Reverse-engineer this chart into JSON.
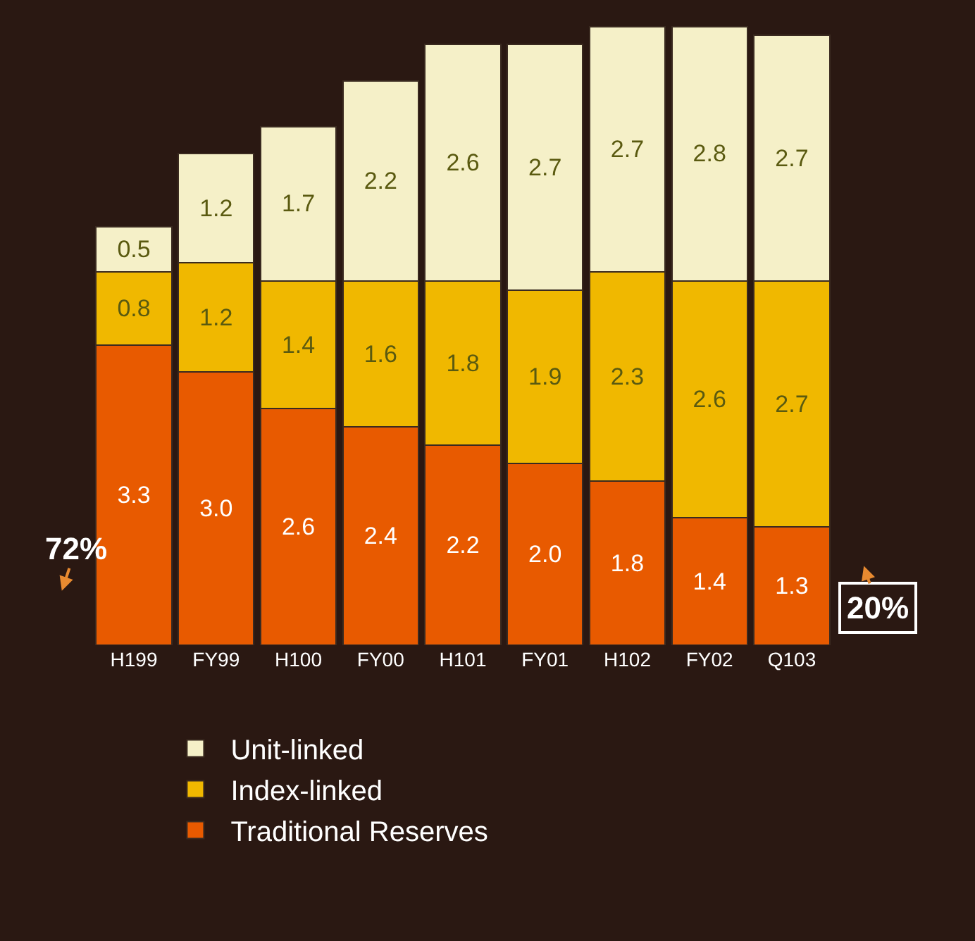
{
  "chart_data": {
    "type": "bar",
    "stacked": true,
    "data_labels": true,
    "legend": "bottom left",
    "grid": false,
    "categories": [
      "H199",
      "FY99",
      "H100",
      "FY00",
      "H101",
      "FY01",
      "H102",
      "FY02",
      "Q103"
    ],
    "series": [
      {
        "name": "Traditional Reserves",
        "color": "#e85a00",
        "values": [
          3.3,
          3.0,
          2.6,
          2.4,
          2.2,
          2.0,
          1.8,
          1.4,
          1.3
        ],
        "value_labels": [
          "3.3",
          "3.0",
          "2.6",
          "2.4",
          "2.2",
          "2.0",
          "1.8",
          "1.4",
          "1.3"
        ]
      },
      {
        "name": "Index-linked",
        "color": "#f0b800",
        "values": [
          0.8,
          1.2,
          1.4,
          1.6,
          1.8,
          1.9,
          2.3,
          2.6,
          2.7
        ]
      },
      {
        "name": "Unit-linked",
        "color": "#f5f0c8",
        "values": [
          0.5,
          1.2,
          1.7,
          2.2,
          2.6,
          2.7,
          2.7,
          2.8,
          2.7
        ]
      }
    ],
    "annotations": [
      "72%",
      "20%"
    ]
  }
}
